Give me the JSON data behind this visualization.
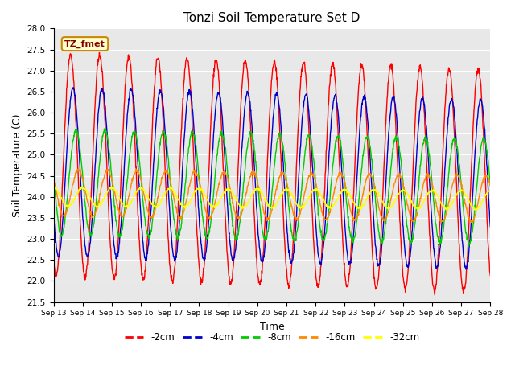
{
  "title": "Tonzi Soil Temperature Set D",
  "xlabel": "Time",
  "ylabel": "Soil Temperature (C)",
  "ylim": [
    21.5,
    28.0
  ],
  "yticks": [
    21.5,
    22.0,
    22.5,
    23.0,
    23.5,
    24.0,
    24.5,
    25.0,
    25.5,
    26.0,
    26.5,
    27.0,
    27.5,
    28.0
  ],
  "colors": {
    "-2cm": "#ff0000",
    "-4cm": "#0000cc",
    "-8cm": "#00cc00",
    "-16cm": "#ff8800",
    "-32cm": "#ffff00"
  },
  "series_labels": [
    "-2cm",
    "-4cm",
    "-8cm",
    "-16cm",
    "-32cm"
  ],
  "annotation_label": "TZ_fmet",
  "annotation_color": "#ffffcc",
  "annotation_border": "#cc8800",
  "annotation_text_color": "#880000",
  "background_color": "#e8e8e8",
  "n_points": 1440,
  "n_days": 15,
  "amplitude_2cm": 2.65,
  "amplitude_4cm": 2.0,
  "amplitude_8cm": 1.25,
  "amplitude_16cm": 0.55,
  "amplitude_32cm": 0.22,
  "mean_2cm": 24.75,
  "mean_4cm": 24.6,
  "mean_8cm": 24.35,
  "mean_16cm": 24.1,
  "mean_32cm": 24.0,
  "phase_shift_4h": 2.0,
  "phase_shift_8h": 4.5,
  "phase_shift_16h": 6.5,
  "phase_shift_32h": 10.0,
  "trend_2cm": -0.025,
  "trend_4cm": -0.02,
  "trend_8cm": -0.015,
  "trend_16cm": -0.01,
  "trend_32cm": -0.005
}
